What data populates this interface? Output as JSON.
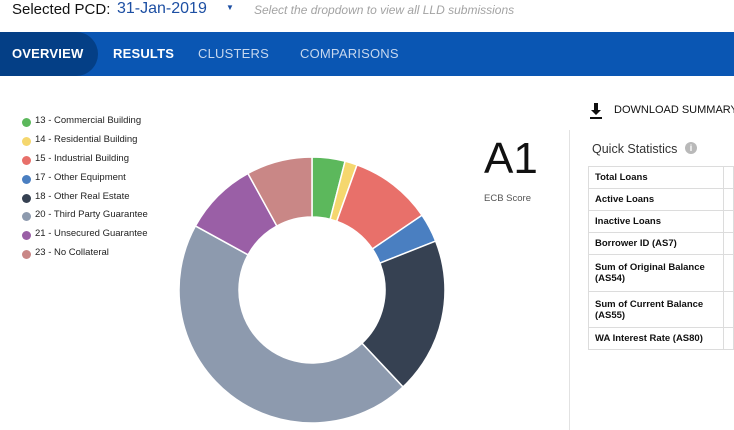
{
  "header": {
    "pcd_label": "Selected PCD:",
    "pcd_value": "31-Jan-2019",
    "pcd_caret": "▼",
    "pcd_hint": "Select the dropdown to view all LLD submissions"
  },
  "nav": {
    "tabs": [
      {
        "label": "OVERVIEW",
        "active": true
      },
      {
        "label": "RESULTS",
        "active": false
      },
      {
        "label": "CLUSTERS",
        "active": false
      },
      {
        "label": "COMPARISONS",
        "active": false
      }
    ]
  },
  "legend": {
    "items": [
      {
        "label": "13 - Commercial Building",
        "color": "#5cb85c"
      },
      {
        "label": "14 - Residential Building",
        "color": "#f5d76e"
      },
      {
        "label": "15 - Industrial Building",
        "color": "#e8706a"
      },
      {
        "label": "17 - Other Equipment",
        "color": "#4a7fc1"
      },
      {
        "label": "18 - Other Real Estate",
        "color": "#364152"
      },
      {
        "label": "20 - Third Party Guarantee",
        "color": "#8d9aae"
      },
      {
        "label": "21 - Unsecured Guarantee",
        "color": "#9a5fa6"
      },
      {
        "label": "23 - No Collateral",
        "color": "#c98786"
      }
    ]
  },
  "chart_data": {
    "type": "pie",
    "categories": [
      "13 - Commercial Building",
      "14 - Residential Building",
      "15 - Industrial Building",
      "17 - Other Equipment",
      "18 - Other Real Estate",
      "20 - Third Party Guarantee",
      "21 - Unsecured Guarantee",
      "23 - No Collateral"
    ],
    "values": [
      4,
      1.5,
      10,
      3.5,
      19,
      45,
      9,
      8
    ],
    "colors": [
      "#5cb85c",
      "#f5d76e",
      "#e8706a",
      "#4a7fc1",
      "#364152",
      "#8d9aae",
      "#9a5fa6",
      "#c98786"
    ],
    "donut": true
  },
  "score": {
    "value": "A1",
    "label": "ECB Score"
  },
  "download": {
    "label": "DOWNLOAD SUMMARY"
  },
  "quick_stats": {
    "title": "Quick Statistics",
    "info": "i",
    "rows": [
      {
        "label": "Total Loans"
      },
      {
        "label": "Active Loans"
      },
      {
        "label": "Inactive Loans"
      },
      {
        "label": "Borrower ID (AS7)"
      },
      {
        "label": "Sum of Original Balance (AS54)"
      },
      {
        "label": "Sum of Current Balance (AS55)"
      },
      {
        "label": "WA Interest Rate (AS80)"
      }
    ]
  }
}
